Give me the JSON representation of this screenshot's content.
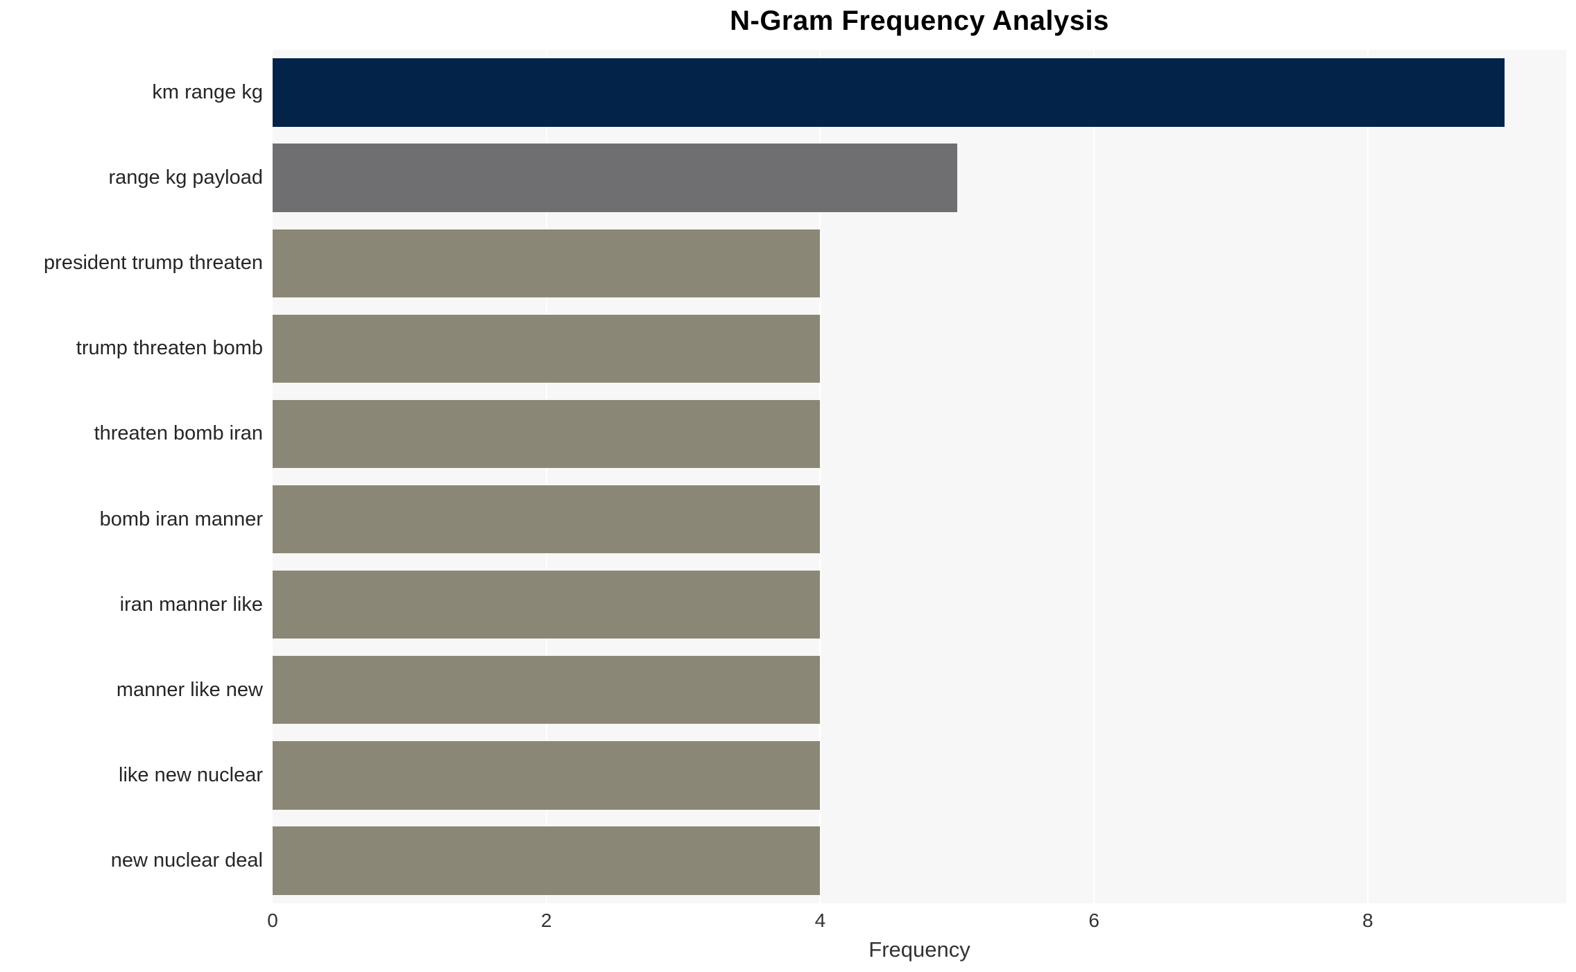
{
  "chart_data": {
    "type": "bar",
    "orientation": "horizontal",
    "title": "N-Gram Frequency Analysis",
    "xlabel": "Frequency",
    "ylabel": "",
    "categories": [
      "km range kg",
      "range kg payload",
      "president trump threaten",
      "trump threaten bomb",
      "threaten bomb iran",
      "bomb iran manner",
      "iran manner like",
      "manner like new",
      "like new nuclear",
      "new nuclear deal"
    ],
    "values": [
      9,
      5,
      4,
      4,
      4,
      4,
      4,
      4,
      4,
      4
    ],
    "bar_colors": [
      "#032349",
      "#6f6f71",
      "#8b8776",
      "#8b8776",
      "#8b8776",
      "#8b8776",
      "#8b8776",
      "#8b8776",
      "#8b8776",
      "#8b8776"
    ],
    "xticks": [
      "0",
      "2",
      "4",
      "6",
      "8"
    ],
    "xtick_values": [
      0,
      2,
      4,
      6,
      8
    ],
    "xlim": [
      0,
      9.45
    ],
    "grid": true,
    "legend": false,
    "plot_background": "#f7f7f7",
    "gridline_color": "#ffffff",
    "label_color": "#262626",
    "tick_color": "#333333"
  }
}
